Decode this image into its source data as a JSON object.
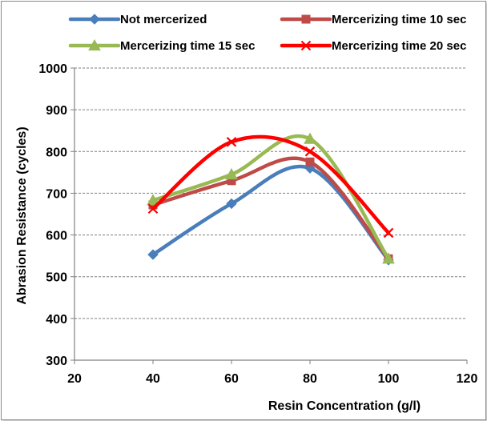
{
  "chart_data": {
    "type": "line",
    "title": "",
    "xlabel": "Resin Concentration (g/l)",
    "ylabel": "Abrasion Resistance (cycles)",
    "xlim": [
      20,
      120
    ],
    "ylim": [
      300,
      1000
    ],
    "xticks": [
      20,
      40,
      60,
      80,
      100,
      120
    ],
    "yticks": [
      300,
      400,
      500,
      600,
      700,
      800,
      900,
      1000
    ],
    "grid": "horizontal dashed",
    "legend_position": "top",
    "smooth": true,
    "series": [
      {
        "name": "Not mercerized",
        "color": "#4a7ebb",
        "marker": "diamond",
        "x": [
          40,
          60,
          80,
          100
        ],
        "y": [
          553,
          675,
          760,
          540
        ]
      },
      {
        "name": "Mercerizing time 10 sec",
        "color": "#be4b48",
        "marker": "square",
        "x": [
          40,
          60,
          80,
          100
        ],
        "y": [
          672,
          730,
          775,
          543
        ]
      },
      {
        "name": "Mercerizing time 15 sec",
        "color": "#98b954",
        "marker": "triangle",
        "x": [
          40,
          60,
          80,
          100
        ],
        "y": [
          683,
          745,
          830,
          543
        ]
      },
      {
        "name": "Mercerizing time 20 sec",
        "color": "#ff0000",
        "marker": "x",
        "x": [
          40,
          60,
          80,
          100
        ],
        "y": [
          663,
          823,
          800,
          605
        ]
      }
    ]
  }
}
